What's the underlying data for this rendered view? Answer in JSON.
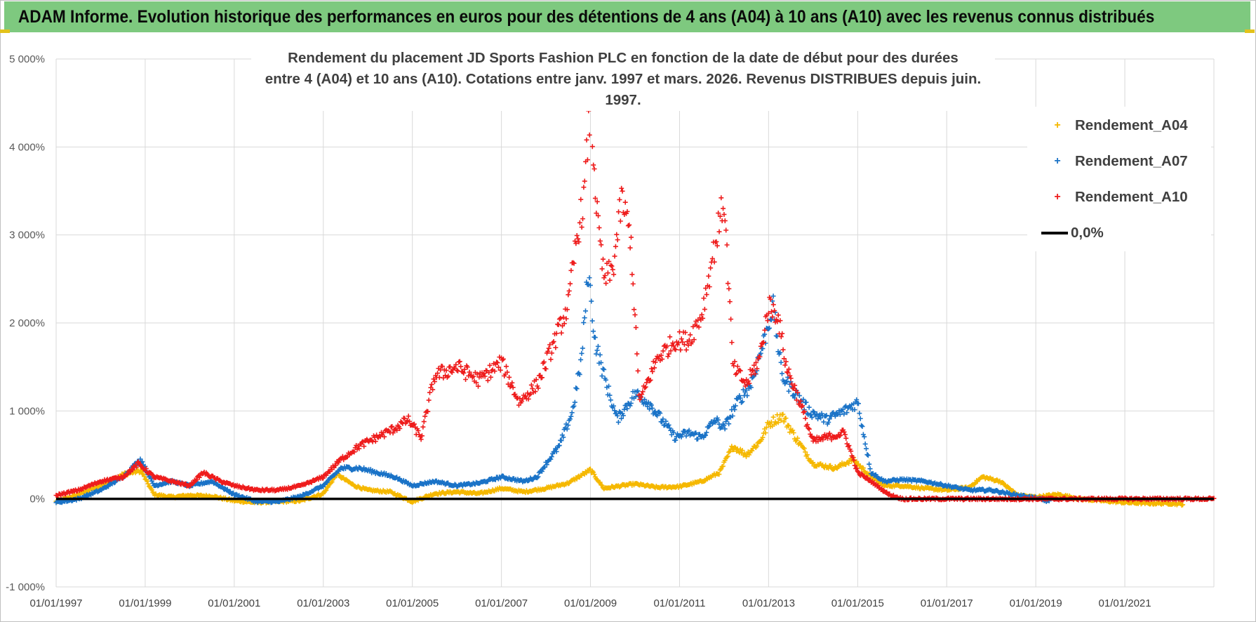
{
  "banner": {
    "title": "ADAM Informe. Evolution historique des performances en euros pour des détentions de 4 ans (A04) à 10 ans (A10) avec les revenus connus distribués"
  },
  "chart_data": {
    "type": "scatter",
    "title_line1": "Rendement du placement JD Sports Fashion PLC en fonction de la date de début pour des durées",
    "title_line2": "entre 4 (A04) et 10 ans (A10).  Cotations entre janv. 1997 et mars. 2026.  Revenus DISTRIBUES depuis juin. 1997.",
    "xlabel": "",
    "ylabel": "",
    "xlim": [
      1997.0,
      2023.0
    ],
    "ylim": [
      -1000,
      5000
    ],
    "y_ticks": [
      -1000,
      0,
      1000,
      2000,
      3000,
      4000,
      5000
    ],
    "y_tick_labels": [
      "-1 000%",
      "0%",
      "1 000%",
      "2 000%",
      "3 000%",
      "4 000%",
      "5 000%"
    ],
    "x_ticks": [
      1997,
      1999,
      2001,
      2003,
      2005,
      2007,
      2009,
      2011,
      2013,
      2015,
      2017,
      2019,
      2021
    ],
    "x_tick_labels": [
      "01/01/1997",
      "01/01/1999",
      "01/01/2001",
      "01/01/2003",
      "01/01/2005",
      "01/01/2007",
      "01/01/2009",
      "01/01/2011",
      "01/01/2013",
      "01/01/2015",
      "01/01/2017",
      "01/01/2019",
      "01/01/2021"
    ],
    "grid": true,
    "legend_position": "top-right",
    "series": [
      {
        "name": "Rendement_A04",
        "color": "#f5b800",
        "x": [
          1997.0,
          1997.5,
          1998.0,
          1998.5,
          1998.9,
          1999.2,
          1999.6,
          2000.0,
          2000.5,
          2001.0,
          2001.5,
          2002.0,
          2002.5,
          2003.0,
          2003.3,
          2003.7,
          2004.0,
          2004.5,
          2005.0,
          2005.5,
          2006.0,
          2006.5,
          2007.0,
          2007.5,
          2008.0,
          2008.5,
          2009.0,
          2009.3,
          2009.7,
          2010.0,
          2010.5,
          2011.0,
          2011.5,
          2011.9,
          2012.2,
          2012.5,
          2012.8,
          2013.0,
          2013.3,
          2013.6,
          2014.0,
          2014.5,
          2014.9,
          2015.3,
          2015.6,
          2016.0,
          2016.5,
          2017.0,
          2017.5,
          2017.8,
          2018.2,
          2018.6,
          2019.0,
          2019.5,
          2020.0,
          2020.5,
          2021.0,
          2021.5,
          2022.0,
          2022.3
        ],
        "y": [
          -30,
          50,
          150,
          280,
          320,
          50,
          20,
          40,
          30,
          -20,
          -40,
          -30,
          -20,
          60,
          280,
          150,
          100,
          80,
          -30,
          60,
          80,
          60,
          120,
          80,
          120,
          180,
          330,
          120,
          150,
          170,
          130,
          140,
          200,
          300,
          600,
          500,
          650,
          850,
          950,
          700,
          400,
          350,
          450,
          250,
          150,
          150,
          120,
          100,
          130,
          250,
          200,
          40,
          20,
          50,
          0,
          -20,
          -40,
          -50,
          -50,
          -60
        ]
      },
      {
        "name": "Rendement_A07",
        "color": "#1a73c7",
        "x": [
          1997.0,
          1997.5,
          1998.0,
          1998.5,
          1998.9,
          1999.2,
          1999.6,
          2000.0,
          2000.5,
          2001.0,
          2001.5,
          2002.0,
          2002.5,
          2003.0,
          2003.4,
          2003.8,
          2004.2,
          2004.6,
          2005.0,
          2005.5,
          2006.0,
          2006.5,
          2007.0,
          2007.5,
          2007.8,
          2008.0,
          2008.3,
          2008.6,
          2008.8,
          2008.95,
          2009.1,
          2009.3,
          2009.6,
          2010.0,
          2010.3,
          2010.6,
          2010.9,
          2011.2,
          2011.5,
          2011.8,
          2012.0,
          2012.3,
          2012.6,
          2012.9,
          2013.1,
          2013.3,
          2013.6,
          2013.9,
          2014.3,
          2014.7,
          2015.0,
          2015.3,
          2015.6,
          2016.0,
          2016.5,
          2017.0,
          2017.5,
          2018.0,
          2018.5,
          2019.0,
          2019.3
        ],
        "y": [
          -40,
          0,
          100,
          250,
          450,
          150,
          200,
          150,
          200,
          50,
          -30,
          -30,
          30,
          150,
          350,
          350,
          300,
          250,
          150,
          200,
          150,
          180,
          250,
          200,
          250,
          400,
          600,
          1000,
          1600,
          2600,
          1800,
          1400,
          900,
          1200,
          1100,
          900,
          700,
          750,
          700,
          900,
          800,
          1100,
          1300,
          1800,
          2200,
          1400,
          1200,
          1000,
          900,
          1000,
          1100,
          300,
          200,
          220,
          200,
          150,
          100,
          100,
          50,
          10,
          -30
        ]
      },
      {
        "name": "Rendement_A10",
        "color": "#ee1c1c",
        "x": [
          1997.0,
          1997.5,
          1998.0,
          1998.5,
          1998.85,
          1999.2,
          1999.6,
          2000.0,
          2000.3,
          2000.7,
          2001.0,
          2001.5,
          2002.0,
          2002.5,
          2003.0,
          2003.4,
          2003.8,
          2004.2,
          2004.6,
          2004.9,
          2005.2,
          2005.5,
          2006.0,
          2006.5,
          2007.0,
          2007.4,
          2007.8,
          2008.2,
          2008.5,
          2008.7,
          2008.85,
          2009.0,
          2009.15,
          2009.3,
          2009.5,
          2009.7,
          2009.9,
          2010.1,
          2010.5,
          2010.9,
          2011.2,
          2011.5,
          2011.8,
          2012.0,
          2012.2,
          2012.5,
          2012.8,
          2013.0,
          2013.2,
          2013.4,
          2013.7,
          2014.0,
          2014.3,
          2014.7,
          2015.0,
          2015.3,
          2015.7,
          2016.0,
          2016.5,
          2017.0,
          2018.0,
          2019.0,
          2020.0,
          2021.0,
          2022.0,
          2023.0
        ],
        "y": [
          40,
          100,
          200,
          250,
          400,
          250,
          200,
          150,
          300,
          200,
          150,
          100,
          100,
          150,
          250,
          450,
          600,
          700,
          800,
          900,
          700,
          1400,
          1500,
          1350,
          1550,
          1100,
          1300,
          1800,
          2200,
          3000,
          3400,
          4500,
          3200,
          2500,
          2600,
          3400,
          3000,
          1100,
          1600,
          1800,
          1800,
          2100,
          2900,
          3400,
          1500,
          1300,
          1600,
          2200,
          2100,
          1500,
          1100,
          650,
          700,
          750,
          300,
          200,
          50,
          0,
          0,
          0,
          0,
          0,
          0,
          0,
          0,
          0
        ]
      }
    ],
    "reference_line": {
      "name": "0,0%",
      "value": 0,
      "color": "#000000"
    }
  }
}
